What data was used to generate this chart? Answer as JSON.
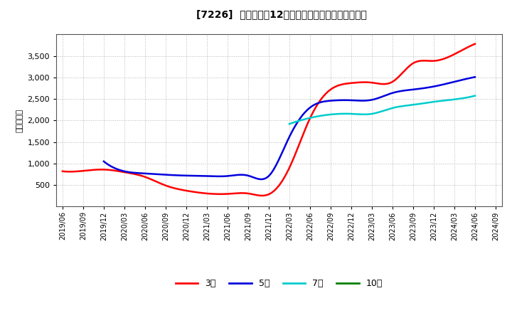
{
  "title": "[7226]  当期純利益12か月移動合計の標準偏差の推移",
  "ylabel": "（百万円）",
  "background_color": "#ffffff",
  "grid_color": "#b0b0b0",
  "ylim": [
    0,
    4000
  ],
  "yticks": [
    500,
    1000,
    1500,
    2000,
    2500,
    3000,
    3500
  ],
  "series": {
    "3年": {
      "color": "#ff0000",
      "dates": [
        "2019/06",
        "2019/09",
        "2019/12",
        "2020/03",
        "2020/06",
        "2020/09",
        "2020/12",
        "2021/03",
        "2021/06",
        "2021/09",
        "2021/12",
        "2022/03",
        "2022/06",
        "2022/09",
        "2022/12",
        "2023/03",
        "2023/06",
        "2023/09",
        "2023/12",
        "2024/03",
        "2024/06"
      ],
      "values": [
        820,
        830,
        860,
        800,
        690,
        490,
        370,
        305,
        295,
        305,
        285,
        900,
        2050,
        2720,
        2870,
        2880,
        2900,
        3330,
        3385,
        3540,
        3780
      ]
    },
    "5年": {
      "color": "#0000dd",
      "dates": [
        "2019/12",
        "2020/03",
        "2020/06",
        "2020/09",
        "2020/12",
        "2021/03",
        "2021/06",
        "2021/09",
        "2021/12",
        "2022/03",
        "2022/06",
        "2022/09",
        "2022/12",
        "2023/03",
        "2023/06",
        "2023/09",
        "2023/12",
        "2024/03",
        "2024/06"
      ],
      "values": [
        1050,
        820,
        770,
        740,
        720,
        710,
        710,
        720,
        710,
        1620,
        2300,
        2460,
        2470,
        2480,
        2640,
        2720,
        2790,
        2900,
        3010
      ]
    },
    "7年": {
      "color": "#00cccc",
      "dates": [
        "2022/03",
        "2022/06",
        "2022/09",
        "2022/12",
        "2023/03",
        "2023/06",
        "2023/09",
        "2023/12",
        "2024/03",
        "2024/06"
      ],
      "values": [
        1920,
        2060,
        2140,
        2155,
        2155,
        2290,
        2365,
        2435,
        2490,
        2575
      ]
    },
    "10年": {
      "color": "#008000",
      "dates": [],
      "values": []
    }
  },
  "legend_labels": [
    "3年",
    "5年",
    "7年",
    "10年"
  ],
  "legend_colors": [
    "#ff0000",
    "#0000dd",
    "#00cccc",
    "#008000"
  ],
  "xtick_labels": [
    "2019/06",
    "2019/09",
    "2019/12",
    "2020/03",
    "2020/06",
    "2020/09",
    "2020/12",
    "2021/03",
    "2021/06",
    "2021/09",
    "2021/12",
    "2022/03",
    "2022/06",
    "2022/09",
    "2022/12",
    "2023/03",
    "2023/06",
    "2023/09",
    "2023/12",
    "2024/03",
    "2024/06",
    "2024/09"
  ]
}
